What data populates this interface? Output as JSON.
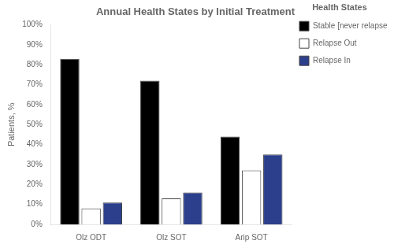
{
  "chart_data": {
    "type": "bar",
    "title": "Annual Health States by Initial Treatment",
    "ylabel": "Patients, %",
    "legend_title": "Health States",
    "categories": [
      "Olz ODT",
      "Olz SOT",
      "Arip SOT"
    ],
    "series": [
      {
        "name": "Stable [never relapsed]",
        "color": "#000000",
        "values": [
          83,
          72,
          44
        ]
      },
      {
        "name": "Relapse Out",
        "color": "#ffffff",
        "values": [
          8,
          13,
          27
        ]
      },
      {
        "name": "Relapse In",
        "color": "#2b3f8c",
        "values": [
          11,
          16,
          35
        ]
      }
    ],
    "ylim": [
      0,
      100
    ],
    "yticks": [
      {
        "value": 0,
        "label": "0%"
      },
      {
        "value": 10,
        "label": "10%"
      },
      {
        "value": 20,
        "label": "20%"
      },
      {
        "value": 30,
        "label": "30%"
      },
      {
        "value": 40,
        "label": "40%"
      },
      {
        "value": 50,
        "label": "50%"
      },
      {
        "value": 60,
        "label": "60%"
      },
      {
        "value": 70,
        "label": "70%"
      },
      {
        "value": 80,
        "label": "80%"
      },
      {
        "value": 90,
        "label": "90%"
      },
      {
        "value": 100,
        "label": "100%"
      }
    ],
    "grid": false,
    "legend": "right"
  }
}
